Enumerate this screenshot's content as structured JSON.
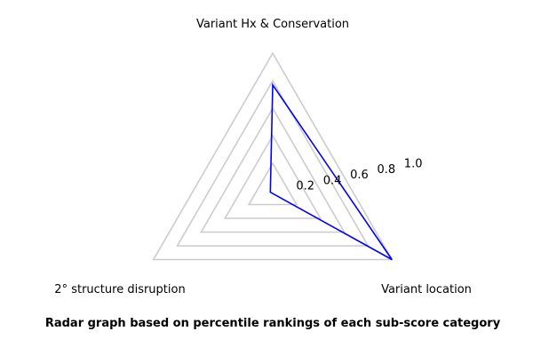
{
  "chart_data": {
    "type": "radar",
    "axes": [
      "Variant Hx & Conservation",
      "Variant location",
      "2° structure disruption"
    ],
    "series": [
      {
        "values": [
          0.77,
          1.0,
          0.02
        ]
      }
    ],
    "rticks": [
      0.2,
      0.4,
      0.6,
      0.8,
      1.0
    ],
    "rtick_labels": [
      "0.2",
      "0.4",
      "0.6",
      "0.8",
      "1.0"
    ],
    "rlim": [
      0,
      1.0
    ],
    "grid": true,
    "title": "Radar graph based on percentile rankings of each sub-score category",
    "colors": {
      "series": "#0000ff",
      "grid": "#cccccc"
    }
  }
}
